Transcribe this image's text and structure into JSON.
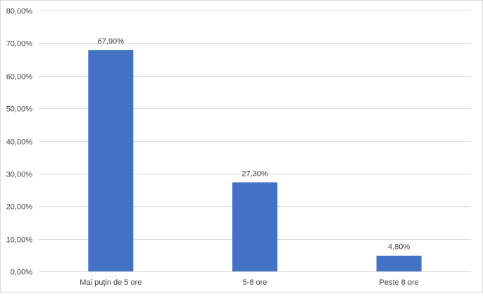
{
  "chart_data": {
    "type": "bar",
    "title": "",
    "xlabel": "",
    "ylabel": "",
    "categories": [
      "Mai puțin de 5 ore",
      "5-8 ore",
      "Peste 8 ore"
    ],
    "values": [
      67.9,
      27.3,
      4.8
    ],
    "data_labels": [
      "67,90%",
      "27,30%",
      "4,80%"
    ],
    "ylim": [
      0,
      80
    ],
    "y_ticks": [
      0,
      10,
      20,
      30,
      40,
      50,
      60,
      70,
      80
    ],
    "y_tick_labels": [
      "0,00%",
      "10,00%",
      "20,00%",
      "30,00%",
      "40,00%",
      "50,00%",
      "60,00%",
      "70,00%",
      "80,00%"
    ],
    "grid": true,
    "legend": "none",
    "bar_color": "#4472c4",
    "gridline_color": "#d9d9d9",
    "text_color": "#404040"
  }
}
